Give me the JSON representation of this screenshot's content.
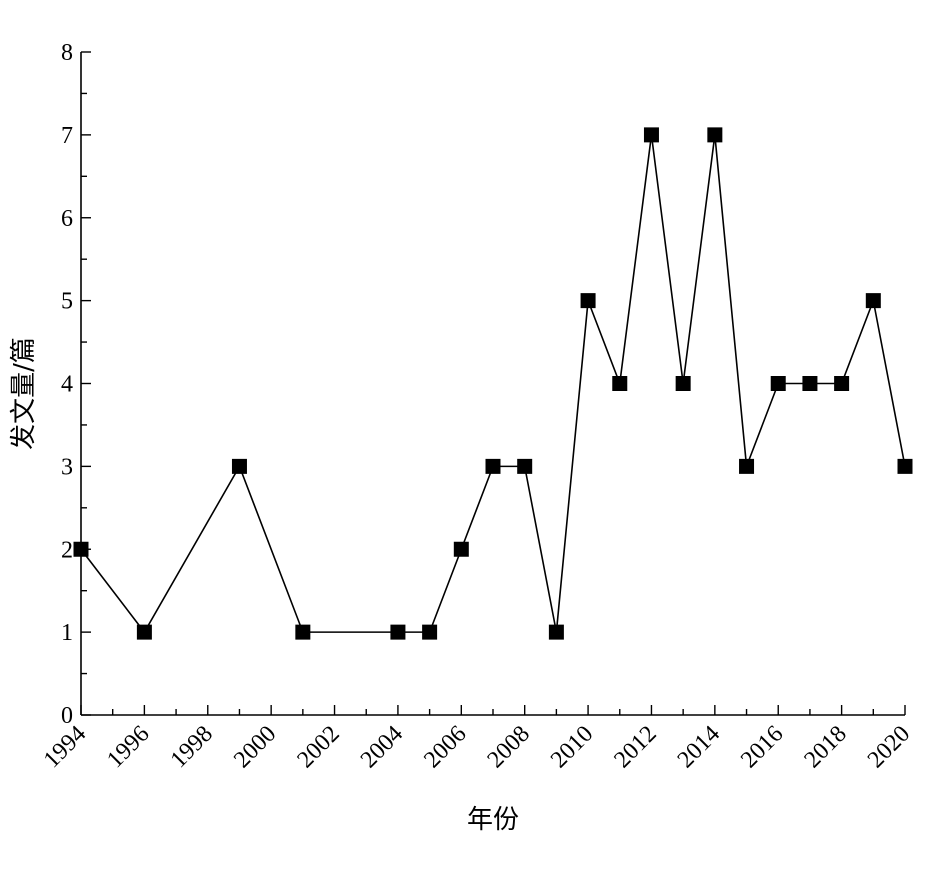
{
  "chart_data": {
    "type": "line",
    "title": "",
    "xlabel": "年份",
    "ylabel": "发文量/篇",
    "xlim": [
      1994,
      2020
    ],
    "ylim": [
      0,
      8
    ],
    "x_ticks": [
      1994,
      1996,
      1998,
      2000,
      2002,
      2004,
      2006,
      2008,
      2010,
      2012,
      2014,
      2016,
      2018,
      2020
    ],
    "x_tick_labels": [
      "1994",
      "1996",
      "1998",
      "2000",
      "2002",
      "2004",
      "2006",
      "2008",
      "2010",
      "2012",
      "2014",
      "2016",
      "2018",
      "2020"
    ],
    "y_ticks": [
      0,
      1,
      2,
      3,
      4,
      5,
      6,
      7,
      8
    ],
    "y_tick_labels": [
      "0",
      "1",
      "2",
      "3",
      "4",
      "5",
      "6",
      "7",
      "8"
    ],
    "grid": false,
    "marker": "square",
    "color": "#000000",
    "series": [
      {
        "x": [
          1994,
          1996,
          1999,
          2001,
          2004,
          2005,
          2006,
          2007,
          2008,
          2009,
          2010,
          2011,
          2012,
          2013,
          2014,
          2015,
          2016,
          2017,
          2018,
          2019,
          2020
        ],
        "values": [
          2,
          1,
          3,
          1,
          1,
          1,
          2,
          3,
          3,
          1,
          5,
          4,
          7,
          4,
          7,
          3,
          4,
          4,
          4,
          5,
          3
        ]
      }
    ]
  }
}
